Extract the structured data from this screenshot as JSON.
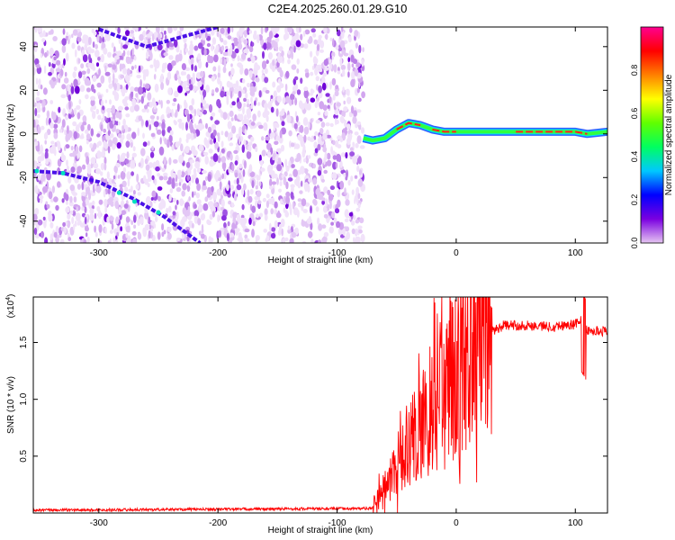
{
  "title": "C2E4.2025.260.01.29.G10",
  "chart_data": [
    {
      "type": "heatmap",
      "name": "spectrogram",
      "xlabel": "Height of straight line (km)",
      "ylabel": "Frequency (Hz)",
      "xlim": [
        -355,
        127
      ],
      "ylim": [
        -50,
        49
      ],
      "xticks": [
        -300,
        -200,
        -100,
        0,
        100
      ],
      "yticks": [
        -40,
        -20,
        0,
        20,
        40
      ],
      "colorbar": {
        "label": "Normalized spectral amplitude",
        "range": [
          0,
          1
        ],
        "ticks": [
          "0.0",
          "0.2",
          "0.4",
          "0.6",
          "0.8"
        ],
        "tick_values": [
          0.0,
          0.2,
          0.4,
          0.6,
          0.8
        ],
        "colors": [
          "#e6c6f2",
          "#7a00e0",
          "#0000ff",
          "#00c8ff",
          "#00ff60",
          "#60ff00",
          "#ffff00",
          "#ff8000",
          "#ff0000",
          "#ff0090"
        ]
      },
      "noise_region_x": [
        -355,
        -78
      ],
      "tracks": [
        {
          "name": "descending-ridge-lower",
          "points": [
            [
              -355,
              -17
            ],
            [
              -330,
              -18
            ],
            [
              -300,
              -22
            ],
            [
              -270,
              -30
            ],
            [
              -245,
              -38
            ],
            [
              -215,
              -50
            ]
          ]
        },
        {
          "name": "descending-ridge-upper",
          "points": [
            [
              -300,
              48
            ],
            [
              -260,
              40
            ],
            [
              -220,
              46
            ],
            [
              -200,
              49
            ]
          ]
        },
        {
          "name": "signal-tone",
          "points": [
            [
              -78,
              -2
            ],
            [
              -70,
              -3
            ],
            [
              -60,
              -2
            ],
            [
              -50,
              2
            ],
            [
              -40,
              5
            ],
            [
              -30,
              4
            ],
            [
              -20,
              2
            ],
            [
              -10,
              1
            ],
            [
              0,
              1
            ],
            [
              20,
              1
            ],
            [
              50,
              1
            ],
            [
              80,
              1
            ],
            [
              100,
              1
            ],
            [
              110,
              0
            ],
            [
              127,
              1
            ]
          ]
        }
      ]
    },
    {
      "type": "line",
      "name": "snr",
      "xlabel": "Height of straight line (km)",
      "ylabel": "SNR (10 * v/v)",
      "scale_label": "(x10",
      "scale_exp": "4",
      "scale_close": ")",
      "xlim": [
        -355,
        127
      ],
      "ylim": [
        0,
        19000
      ],
      "xticks": [
        -300,
        -200,
        -100,
        0,
        100
      ],
      "yticks": [
        5000,
        10000,
        15000
      ],
      "ytick_labels": [
        "0.5",
        "1.0",
        "1.5"
      ],
      "line_color": "#ff0000",
      "series": [
        {
          "name": "snr-envelope",
          "x": [
            -355,
            -70,
            -60,
            -50,
            -40,
            -30,
            -20,
            -10,
            0,
            10,
            20,
            30,
            40,
            60,
            80,
            100,
            105,
            110,
            127
          ],
          "y": [
            250,
            400,
            2000,
            4000,
            6000,
            8000,
            9500,
            11000,
            12000,
            13500,
            15000,
            16000,
            16500,
            16500,
            16400,
            16600,
            17000,
            16000,
            16000
          ]
        }
      ]
    }
  ]
}
